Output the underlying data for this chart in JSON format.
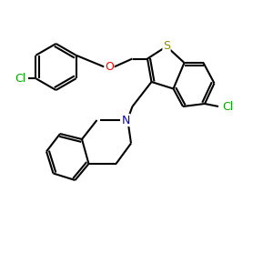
{
  "background": "#ffffff",
  "bond_color": "#000000",
  "bond_width": 1.5,
  "atom_colors": {
    "S": "#8b8b00",
    "N": "#0000cd",
    "O": "#ff0000",
    "Cl": "#00aa00",
    "C": "#000000"
  },
  "font_size": 9,
  "fig_size": [
    3.0,
    3.0
  ],
  "dpi": 100
}
